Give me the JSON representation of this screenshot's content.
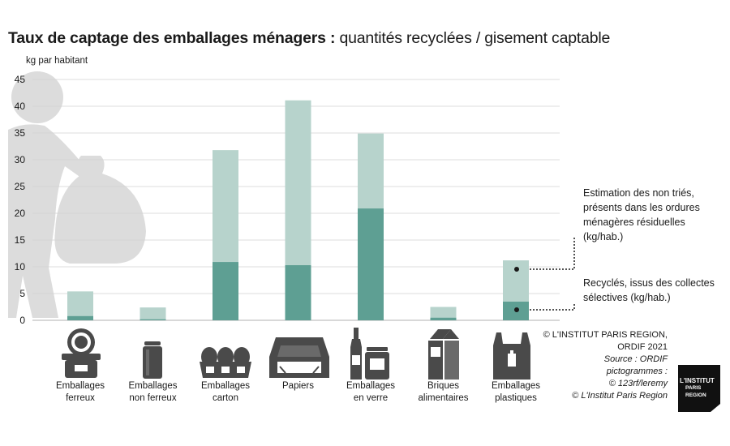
{
  "title_bold": "Taux de captage des emballages ménagers :",
  "title_rest": " quantités recyclées / gisement captable",
  "y_unit": "kg par habitant",
  "legend": {
    "non_tries": [
      "Estimation des non triés,",
      "présents dans les ordures",
      "ménagères résiduelles",
      "(kg/hab.)"
    ],
    "recycles": [
      "Recyclés, issus des collectes",
      "sélectives (kg/hab.)"
    ]
  },
  "credits": {
    "line1": "© L'INSTITUT PARIS REGION,",
    "line2": "ORDIF 2021",
    "line3": "Source : ORDIF",
    "line4": "pictogrammes :",
    "line5": "© 123rf/leremy",
    "line6": "© L'Institut Paris Region"
  },
  "logo": {
    "line1": "L'INSTITUT",
    "line2": "PARIS",
    "line3": "REGION"
  },
  "colors": {
    "recycled": "#5e9f93",
    "non_sorted": "#b7d3cc",
    "grid": "#d0d0d0",
    "icon": "#4a4a4a",
    "silhouette": "#dcdcdc"
  },
  "chart_data": {
    "type": "bar",
    "stacked": true,
    "categories": [
      [
        "Emballages",
        "ferreux"
      ],
      [
        "Emballages",
        "non ferreux"
      ],
      [
        "Emballages",
        "carton"
      ],
      [
        "Papiers"
      ],
      [
        "Emballages",
        "en verre"
      ],
      [
        "Briques",
        "alimentaires"
      ],
      [
        "Emballages",
        "plastiques"
      ]
    ],
    "icons": [
      "tin-can-icon",
      "soda-can-icon",
      "egg-carton-icon",
      "paper-tray-icon",
      "glass-bottle-jar-icon",
      "milk-carton-icon",
      "plastic-packaging-icon"
    ],
    "series": [
      {
        "values": [
          0.8,
          0.2,
          10.9,
          10.3,
          20.9,
          0.5,
          3.5
        ]
      },
      {
        "values": [
          4.6,
          2.2,
          20.9,
          30.8,
          14.0,
          2.0,
          7.7
        ]
      }
    ],
    "ylim": [
      0,
      45
    ],
    "yticks": [
      0,
      5,
      10,
      15,
      20,
      25,
      30,
      35,
      40,
      45
    ],
    "grid": true
  }
}
